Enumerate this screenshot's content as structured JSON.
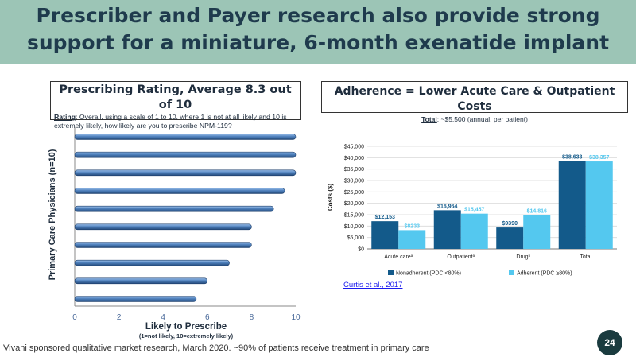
{
  "slide": {
    "title": "Prescriber and Payer research also provide strong support for a miniature, 6-month exenatide implant",
    "footer": "Vivani sponsored qualitative market research, March 2020. ~90% of patients receive treatment in primary care",
    "page_number": "24",
    "header_color": "#9cc5b6"
  },
  "left_panel": {
    "title": "Prescribing Rating, Average 8.3 out of 10",
    "subtitle_label": "Rating",
    "subtitle_text": ": Overall, using a scale of 1 to 10, where 1 is not at all likely and 10 is extremely likely, how likely are you to prescribe NPM-119?"
  },
  "right_panel": {
    "title": "Adherence = Lower Acute Care & Outpatient Costs",
    "subtitle_label": "Total",
    "subtitle_text": ": ~$5,500 (annual, per patient)",
    "reference": "Curtis et al., 2017"
  },
  "chart_data": [
    {
      "type": "bar",
      "orientation": "horizontal",
      "ylabel": "Primary Care Physicians (n=10)",
      "xlabel": "Likely to Prescribe",
      "xlabel_note": "(1=not likely, 10=extremely likely)",
      "xlim": [
        0,
        10
      ],
      "xticks": [
        "0",
        "2",
        "4",
        "6",
        "8",
        "10"
      ],
      "grid": false,
      "bar_color": "#4f81bd",
      "values": [
        10,
        10,
        10,
        9.5,
        9,
        8,
        8,
        7,
        6,
        5.5
      ]
    },
    {
      "type": "bar",
      "orientation": "vertical",
      "ylabel": "Costs ($)",
      "ylim": [
        0,
        45000
      ],
      "yticks": [
        "$0",
        "$5,000",
        "$10,000",
        "$15,000",
        "$20,000",
        "$25,000",
        "$30,000",
        "$35,000",
        "$40,000",
        "$45,000"
      ],
      "categories": [
        "Acute care",
        "Outpatient",
        "Drug",
        "Total"
      ],
      "superscripts": [
        "a",
        "a",
        "b",
        ""
      ],
      "legend_position": "bottom",
      "grid": true,
      "series": [
        {
          "name": "Nonadherent (PDC <80%)",
          "color": "#135a8a",
          "values": [
            12153,
            16964,
            9390,
            38633
          ],
          "labels": [
            "$12,153",
            "$16,964",
            "$9390",
            "$38,633"
          ]
        },
        {
          "name": "Adherent (PDC ≥80%)",
          "color": "#54c8ef",
          "values": [
            8233,
            15457,
            14816,
            38357
          ],
          "labels": [
            "$8233",
            "$15,457",
            "$14,816",
            "$38,357"
          ]
        }
      ]
    }
  ]
}
